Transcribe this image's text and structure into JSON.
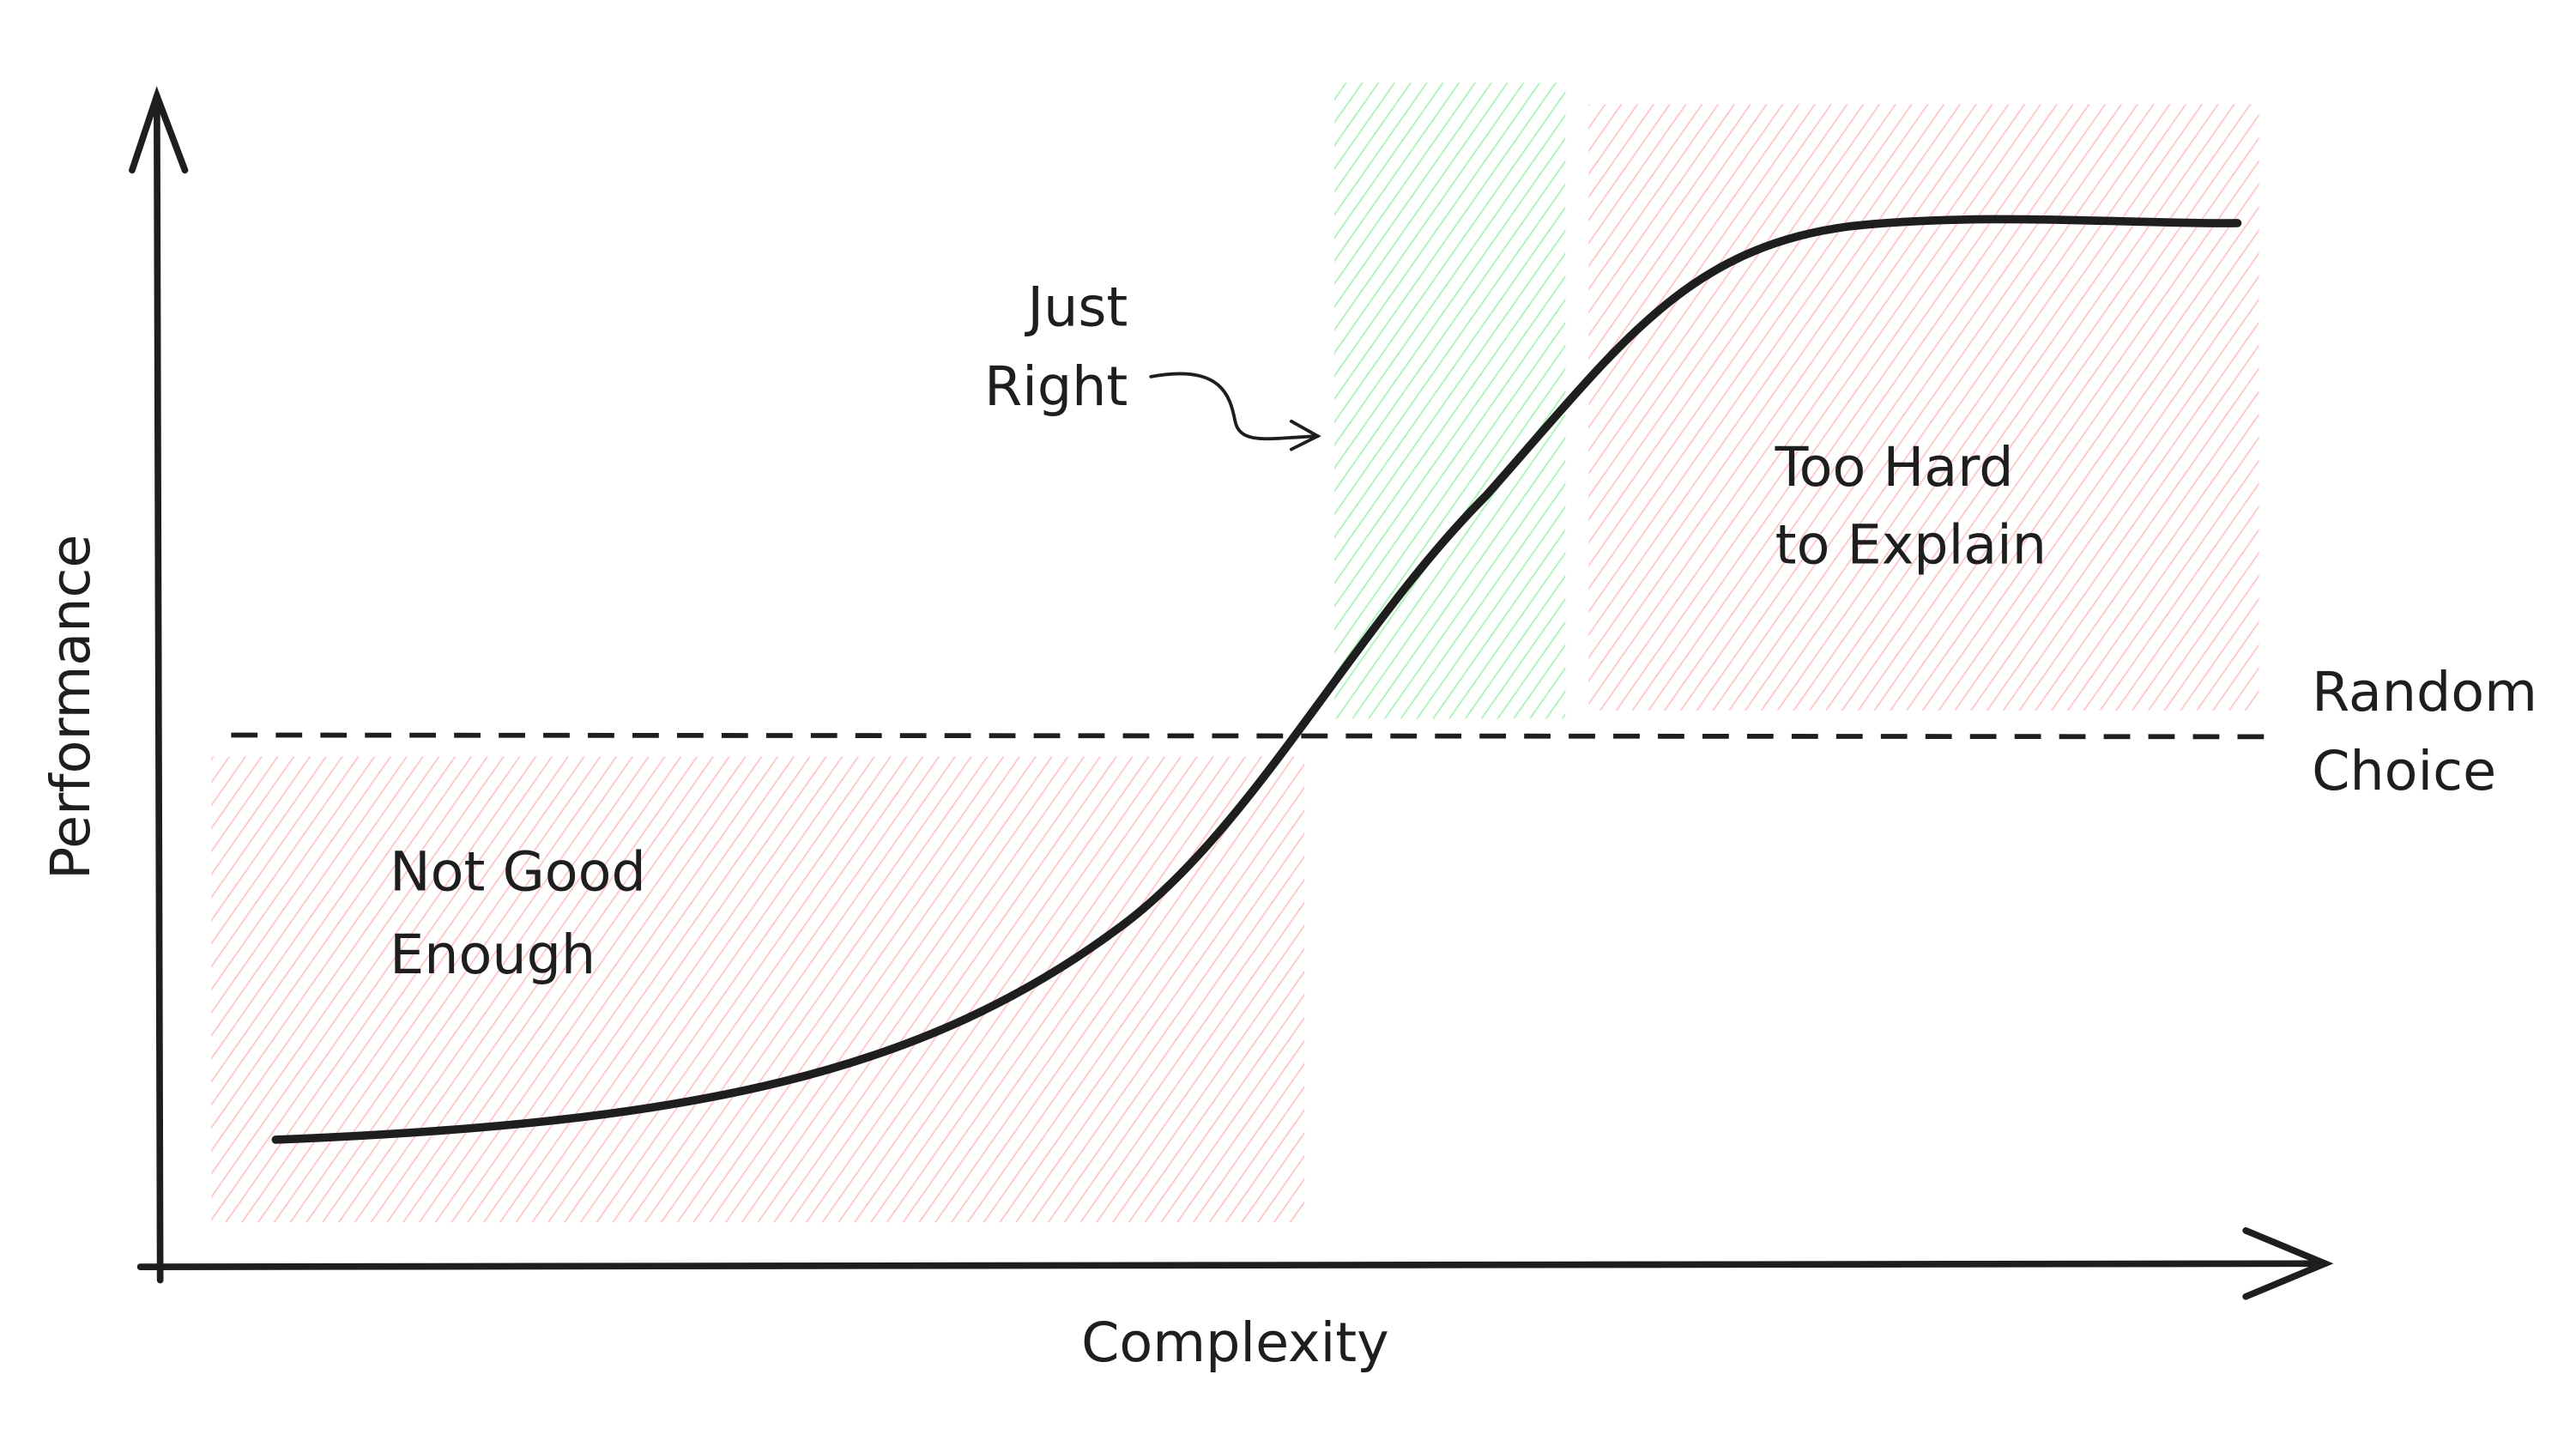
{
  "axes": {
    "y_label": "Performance",
    "x_label": "Complexity"
  },
  "regions": [
    {
      "label_lines": [
        "Not Good",
        "Enough"
      ]
    },
    {
      "label_lines": [
        "Just",
        "Right"
      ]
    },
    {
      "label_lines": [
        "Too Hard",
        "to Explain"
      ]
    }
  ],
  "baseline": {
    "label_lines": [
      "Random",
      "Choice"
    ]
  }
}
